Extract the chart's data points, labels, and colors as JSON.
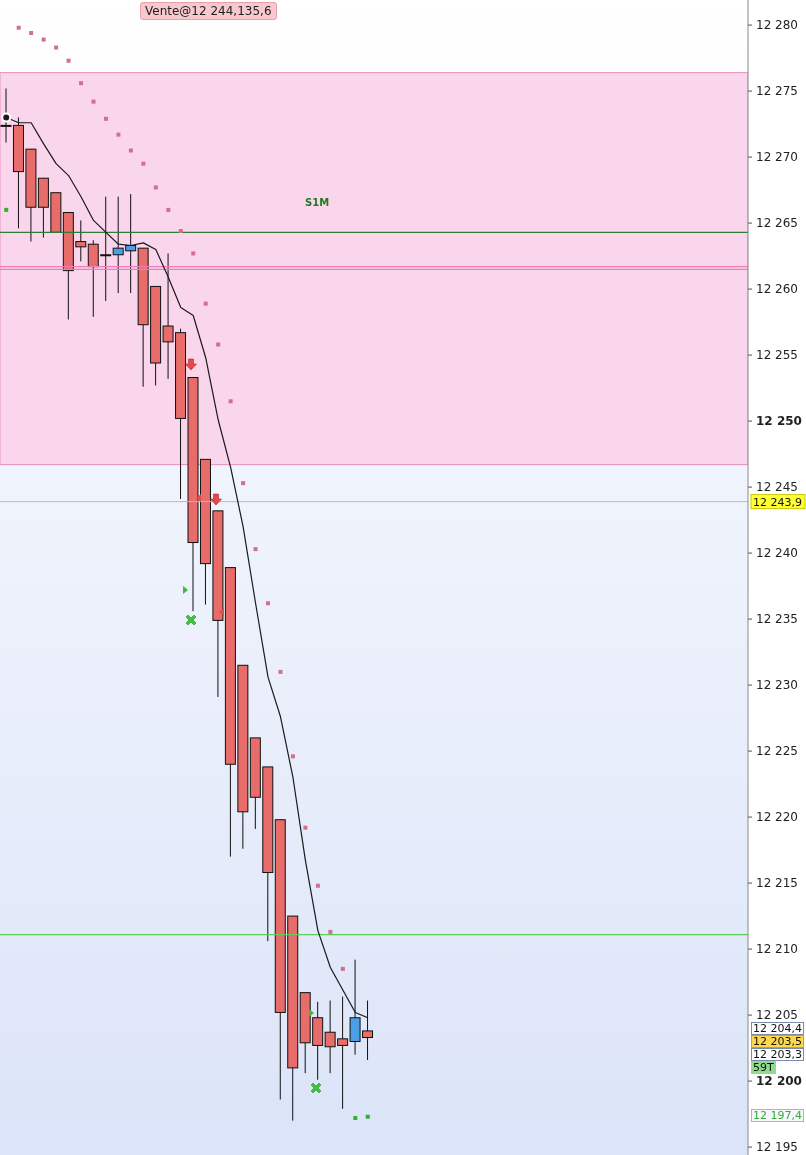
{
  "chart_data": {
    "type": "candlestick",
    "tick_labels": "y",
    "categories": [
      null,
      null,
      null,
      null,
      null,
      null,
      null,
      null,
      null,
      null,
      null,
      null,
      null,
      null,
      null,
      null,
      null,
      null,
      null,
      null,
      null,
      null,
      null,
      null,
      null,
      null,
      null,
      null,
      null,
      null,
      null,
      null,
      null,
      null,
      null,
      null,
      null,
      null,
      null,
      null,
      null,
      null,
      null,
      null,
      null,
      null,
      null,
      null,
      null,
      null,
      null,
      null,
      null,
      null,
      null,
      null,
      null,
      null,
      null,
      null
    ],
    "ohlc": [
      [
        12272.4,
        12275.2,
        12271.1,
        12272.4
      ],
      [
        12272.4,
        12273.0,
        12264.6,
        12268.9
      ],
      [
        12270.6,
        12270.6,
        12263.6,
        12266.2
      ],
      [
        12268.4,
        12268.4,
        12263.9,
        12266.2
      ],
      [
        12267.3,
        12267.3,
        12264.3,
        12264.3
      ],
      [
        12265.8,
        12265.8,
        12257.7,
        12261.4
      ],
      [
        12263.6,
        12265.2,
        12262.1,
        12263.2
      ],
      [
        12263.4,
        12263.7,
        12257.9,
        12261.7
      ],
      [
        12262.6,
        12267.0,
        12259.1,
        12262.6
      ],
      [
        12262.6,
        12267.0,
        12259.7,
        12263.1
      ],
      [
        12262.9,
        12267.2,
        12259.7,
        12263.3
      ],
      [
        12263.1,
        12263.1,
        12252.6,
        12257.3
      ],
      [
        12260.2,
        12260.2,
        12252.7,
        12254.4
      ],
      [
        12257.2,
        12262.7,
        12253.2,
        12256.0
      ],
      [
        12256.7,
        12257.0,
        12244.1,
        12250.2
      ],
      [
        12253.3,
        12253.3,
        12235.6,
        12240.8
      ],
      [
        12247.1,
        12247.1,
        12236.1,
        12239.2
      ],
      [
        12243.2,
        12243.2,
        12229.1,
        12234.9
      ],
      [
        12238.9,
        12238.9,
        12217.0,
        12224.0
      ],
      [
        12231.5,
        12231.5,
        12217.6,
        12220.4
      ],
      [
        12226.0,
        12226.0,
        12219.1,
        12221.5
      ],
      [
        12223.8,
        12223.8,
        12210.6,
        12215.8
      ],
      [
        12219.8,
        12219.8,
        12198.6,
        12205.2
      ],
      [
        12212.5,
        12212.5,
        12197.0,
        12201.0
      ],
      [
        12206.7,
        12206.7,
        12200.6,
        12202.9
      ],
      [
        12204.8,
        12206.0,
        12200.1,
        12202.7
      ],
      [
        12203.7,
        12206.1,
        12200.6,
        12202.6
      ],
      [
        12203.2,
        12206.4,
        12197.9,
        12202.7
      ],
      [
        12203.0,
        12209.2,
        12202.0,
        12204.8
      ],
      [
        12203.8,
        12206.1,
        12201.6,
        12203.3
      ],
      null,
      null,
      null,
      null,
      null,
      null,
      null,
      null,
      null,
      null,
      null,
      null,
      null,
      null,
      null,
      null,
      null,
      null,
      null,
      null,
      null,
      null,
      null,
      null,
      null,
      null,
      null,
      null,
      null,
      null
    ],
    "colors": [
      "#e86c6a",
      "#e86c6a",
      "#e86c6a",
      "#e86c6a",
      "#e86c6a",
      "#e86c6a",
      "#e86c6a",
      "#e86c6a",
      "#e86c6a",
      "#4a9fe8",
      "#4a9fe8",
      "#e86c6a",
      "#e86c6a",
      "#e86c6a",
      "#e86c6a",
      "#e86c6a",
      "#e86c6a",
      "#e86c6a",
      "#e86c6a",
      "#e86c6a",
      "#e86c6a",
      "#e86c6a",
      "#e86c6a",
      "#e86c6a",
      "#e86c6a",
      "#e86c6a",
      "#e86c6a",
      "#e86c6a",
      "#4a9fe8",
      "#e86c6a",
      null,
      null,
      null,
      null,
      null,
      null,
      null,
      null,
      null,
      null,
      null,
      null,
      null,
      null,
      null,
      null,
      null,
      null,
      null,
      null,
      null,
      null,
      null,
      null,
      null,
      null,
      null,
      null,
      null,
      null
    ],
    "series": [
      {
        "type": "line",
        "color": "#1a1a1a",
        "values": [
          12273.0,
          12272.6,
          12272.6,
          12271.0,
          12269.5,
          12268.6,
          12267.0,
          12265.2,
          12264.3,
          12263.4,
          12263.3,
          12263.5,
          12263.0,
          12260.9,
          12258.6,
          12258.0,
          12254.8,
          12250.1,
          12246.5,
          12242.0,
          12236.2,
          12230.6,
          12227.6,
          12223.0,
          12216.7,
          12211.4,
          12208.6,
          12206.9,
          12205.2,
          12204.8,
          null,
          null,
          null,
          null,
          null,
          null,
          null,
          null,
          null,
          null,
          null,
          null,
          null,
          null,
          null,
          null,
          null,
          null,
          null,
          null,
          null,
          null,
          null,
          null,
          null,
          null,
          null,
          null,
          null,
          null
        ]
      },
      {
        "type": "scatter",
        "marker": "square",
        "colors": [
          "#33b033",
          "#d2708a",
          "#d2708a",
          "#d2708a",
          "#d2708a",
          "#d2708a",
          "#d2708a",
          "#d2708a",
          "#d2708a",
          "#d2708a",
          "#d2708a",
          "#d2708a",
          "#d2708a",
          "#d2708a",
          "#d2708a",
          "#d2708a",
          "#d2708a",
          "#d2708a",
          "#d2708a",
          "#d2708a",
          "#d2708a",
          "#d2708a",
          "#d2708a",
          "#d2708a",
          "#d2708a",
          "#d2708a",
          "#d2708a",
          "#d2708a",
          "#33b033",
          "#33b033",
          null,
          null,
          null,
          null,
          null,
          null,
          null,
          null,
          null,
          null,
          null,
          null,
          null,
          null,
          null,
          null,
          null,
          null,
          null,
          null,
          null,
          null,
          null,
          null,
          null,
          null,
          null,
          null,
          null,
          null
        ],
        "values": [
          12266.0,
          12279.8,
          12279.4,
          12278.9,
          12278.3,
          12277.3,
          12275.6,
          12274.2,
          12272.9,
          12271.7,
          12270.5,
          12269.5,
          12267.7,
          12266.0,
          12264.4,
          12262.7,
          12258.9,
          12255.8,
          12251.5,
          12245.3,
          12240.3,
          12236.2,
          12231.0,
          12224.6,
          12219.2,
          12214.8,
          12211.3,
          12208.5,
          12197.2,
          12197.3,
          null,
          null,
          null,
          null,
          null,
          null,
          null,
          null,
          null,
          null,
          null,
          null,
          null,
          null,
          null,
          null,
          null,
          null,
          null,
          null,
          null,
          null,
          null,
          null,
          null,
          null,
          null,
          null,
          null,
          null
        ]
      }
    ],
    "ylim": [
      12194.4,
      12281.9
    ],
    "yticks": [
      {
        "value": 12195,
        "label": "12 195"
      },
      {
        "value": 12200,
        "label": "12 200"
      },
      {
        "value": 12205,
        "label": "12 205"
      },
      {
        "value": 12210,
        "label": "12 210"
      },
      {
        "value": 12215,
        "label": "12 215"
      },
      {
        "value": 12220,
        "label": "12 220"
      },
      {
        "value": 12225,
        "label": "12 225"
      },
      {
        "value": 12230,
        "label": "12 230"
      },
      {
        "value": 12235,
        "label": "12 235"
      },
      {
        "value": 12240,
        "label": "12 240"
      },
      {
        "value": 12245,
        "label": "12 245"
      },
      {
        "value": 12250,
        "label": "12 250"
      },
      {
        "value": 12255,
        "label": "12 255"
      },
      {
        "value": 12260,
        "label": "12 260"
      },
      {
        "value": 12265,
        "label": "12 265"
      },
      {
        "value": 12270,
        "label": "12 270"
      },
      {
        "value": 12275,
        "label": "12 275"
      },
      {
        "value": 12280,
        "label": "12 280"
      }
    ],
    "bands": [
      {
        "axis": "y",
        "from": 12246.7,
        "to": 12276.4,
        "label": "S1M",
        "color": "#fad6ec"
      }
    ],
    "ref_lines": [
      {
        "axis": "y",
        "value": 12264.3,
        "color": "#2f7d32"
      },
      {
        "axis": "y",
        "value": 12261.7,
        "color": "#f07cb8"
      },
      {
        "axis": "y",
        "value": 12261.5,
        "color": "#f07cb8"
      },
      {
        "axis": "y",
        "value": 12243.9,
        "label": "12 243,9",
        "color": "#f4a0a0"
      },
      {
        "axis": "y",
        "value": 12211.1,
        "color": "#5ccc5c"
      }
    ],
    "annotations": [
      "Vente@12 244,135,6",
      "12 204,4",
      "12 203,5",
      "12 203,3",
      "59T",
      "12 197,4"
    ]
  }
}
